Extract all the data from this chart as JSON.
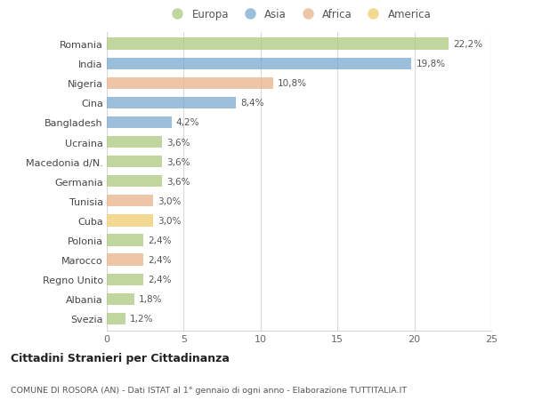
{
  "countries": [
    "Romania",
    "India",
    "Nigeria",
    "Cina",
    "Bangladesh",
    "Ucraina",
    "Macedonia d/N.",
    "Germania",
    "Tunisia",
    "Cuba",
    "Polonia",
    "Marocco",
    "Regno Unito",
    "Albania",
    "Svezia"
  ],
  "values": [
    22.2,
    19.8,
    10.8,
    8.4,
    4.2,
    3.6,
    3.6,
    3.6,
    3.0,
    3.0,
    2.4,
    2.4,
    2.4,
    1.8,
    1.2
  ],
  "labels": [
    "22,2%",
    "19,8%",
    "10,8%",
    "8,4%",
    "4,2%",
    "3,6%",
    "3,6%",
    "3,6%",
    "3,0%",
    "3,0%",
    "2,4%",
    "2,4%",
    "2,4%",
    "1,8%",
    "1,2%"
  ],
  "continents": [
    "Europa",
    "Asia",
    "Africa",
    "Asia",
    "Asia",
    "Europa",
    "Europa",
    "Europa",
    "Africa",
    "America",
    "Europa",
    "Africa",
    "Europa",
    "Europa",
    "Europa"
  ],
  "colors": {
    "Europa": "#adc97f",
    "Asia": "#7aaace",
    "Africa": "#e8b48a",
    "America": "#f0cc6e"
  },
  "legend_order": [
    "Europa",
    "Asia",
    "Africa",
    "America"
  ],
  "title": "Cittadini Stranieri per Cittadinanza",
  "subtitle": "COMUNE DI ROSORA (AN) - Dati ISTAT al 1° gennaio di ogni anno - Elaborazione TUTTITALIA.IT",
  "xlim": [
    0,
    25
  ],
  "xticks": [
    0,
    5,
    10,
    15,
    20,
    25
  ],
  "background_color": "#ffffff",
  "grid_color": "#d8d8d8",
  "bar_alpha": 0.75
}
